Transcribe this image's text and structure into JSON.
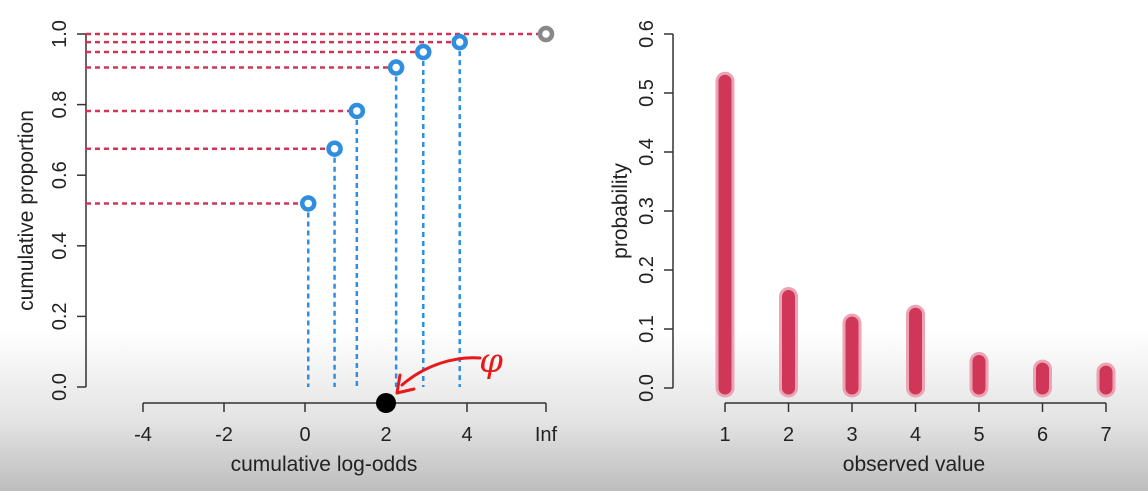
{
  "chart_data": [
    {
      "type": "scatter",
      "xlabel": "cumulative log-odds",
      "ylabel": "cumulative proportion",
      "xlim": [
        -4,
        4
      ],
      "ylim": [
        0,
        1
      ],
      "x_tick_labels": [
        "-4",
        "-2",
        "0",
        "2",
        "4",
        "Inf"
      ],
      "y_tick_labels": [
        "0.0",
        "0.2",
        "0.4",
        "0.6",
        "0.8",
        "1.0"
      ],
      "points": [
        {
          "x": 0.08,
          "y": 0.52
        },
        {
          "x": 0.73,
          "y": 0.675
        },
        {
          "x": 1.28,
          "y": 0.782
        },
        {
          "x": 2.25,
          "y": 0.905
        },
        {
          "x": 2.92,
          "y": 0.949
        },
        {
          "x": 3.82,
          "y": 0.977
        }
      ],
      "inf_point": {
        "x": "Inf",
        "y": 1.0
      },
      "marked_x": 2.0,
      "annotation": "φ",
      "colors": {
        "point": "#2f8ee0",
        "h_line": "#cf3657",
        "v_line": "#2f8ee0",
        "inf_point": "#888888",
        "annotation": "#e8191a",
        "marker": "#000000"
      }
    },
    {
      "type": "bar",
      "xlabel": "observed value",
      "ylabel": "probability",
      "ylim": [
        0,
        0.6
      ],
      "categories": [
        "1",
        "2",
        "3",
        "4",
        "5",
        "6",
        "7"
      ],
      "values": [
        0.52,
        0.155,
        0.11,
        0.125,
        0.045,
        0.032,
        0.027
      ],
      "y_tick_labels": [
        "0.0",
        "0.1",
        "0.2",
        "0.3",
        "0.4",
        "0.5",
        "0.6"
      ],
      "colors": {
        "bar": "#cf3657",
        "bar_edge": "#eba4b4"
      }
    }
  ]
}
